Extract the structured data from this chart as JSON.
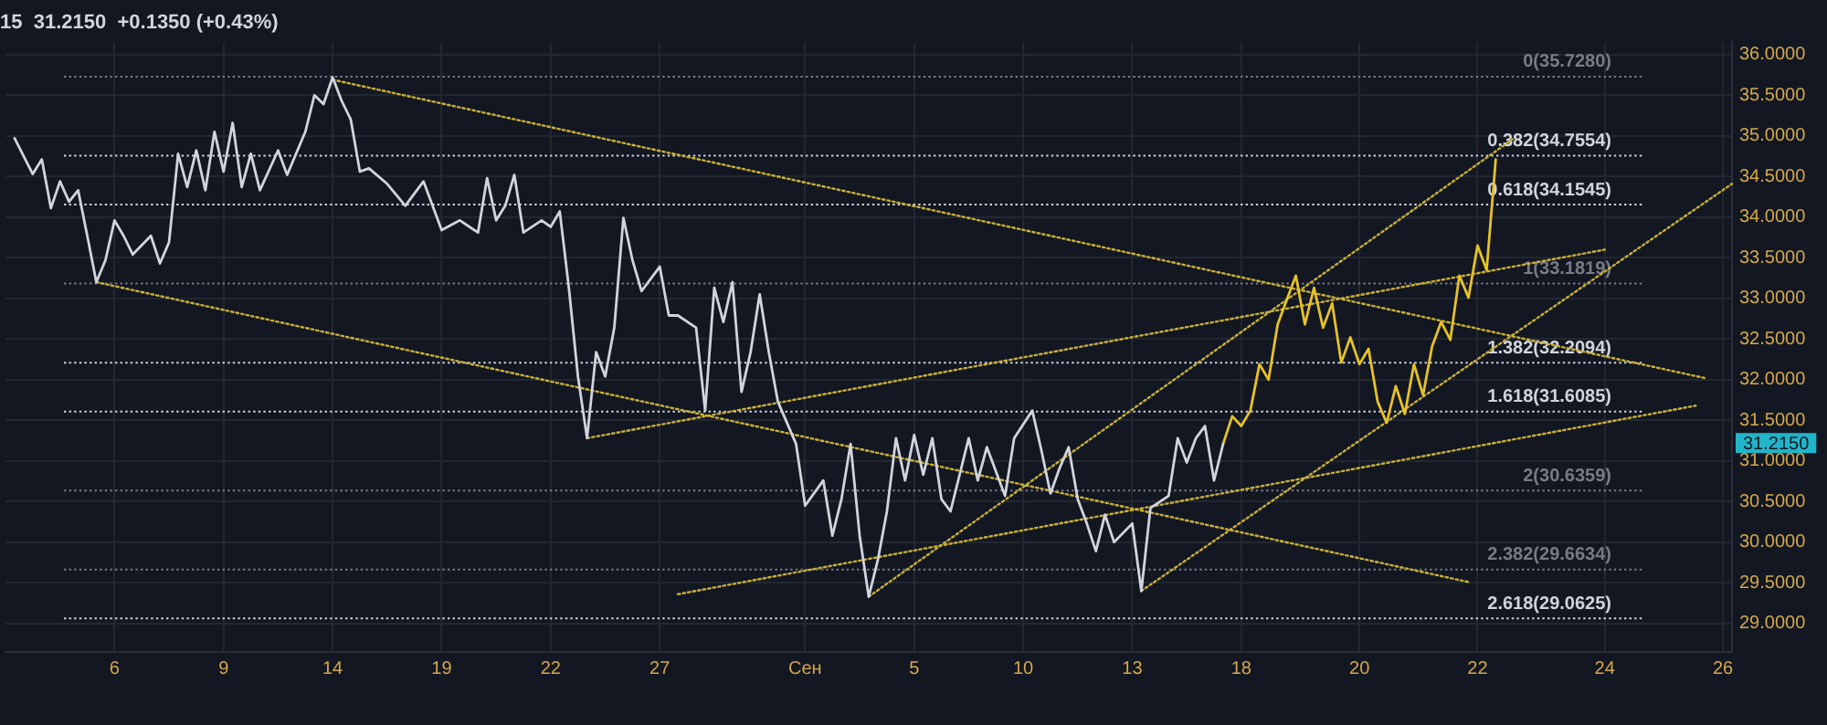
{
  "chart_data": {
    "type": "line",
    "title": "15  31.2150  +0.1350 (+0.43%)",
    "categories": [
      null,
      null,
      null,
      null,
      null,
      null,
      null,
      null,
      null,
      null,
      null,
      null,
      "6",
      null,
      null,
      null,
      null,
      null,
      null,
      null,
      null,
      null,
      null,
      null,
      "9",
      null,
      null,
      null,
      null,
      null,
      null,
      null,
      null,
      null,
      null,
      null,
      "14",
      null,
      null,
      null,
      null,
      null,
      null,
      null,
      null,
      null,
      null,
      null,
      "19",
      null,
      null,
      null,
      null,
      null,
      null,
      null,
      null,
      null,
      null,
      null,
      "22",
      null,
      null,
      null,
      null,
      null,
      null,
      null,
      null,
      null,
      null,
      null,
      "27",
      null,
      null,
      null,
      null,
      null,
      null,
      null,
      null,
      null,
      null,
      null,
      null,
      null,
      null,
      null,
      "Сен",
      null,
      null,
      null,
      null,
      null,
      null,
      null,
      null,
      null,
      null,
      null,
      "5",
      null,
      null,
      null,
      null,
      null,
      null,
      null,
      null,
      null,
      null,
      null,
      "10",
      null,
      null,
      null,
      null,
      null,
      null,
      null,
      null,
      null,
      null,
      null,
      "13",
      null,
      null,
      null,
      null,
      null,
      null,
      null,
      null,
      null,
      null,
      null,
      "18",
      null,
      null,
      null,
      null,
      null,
      null,
      null,
      null,
      null,
      null,
      null,
      null,
      "20",
      null,
      null,
      null,
      null,
      null,
      null,
      null,
      null,
      null,
      null,
      null,
      null,
      "22",
      null,
      null,
      null,
      null,
      null,
      null,
      null,
      null,
      null,
      null,
      null,
      null,
      null,
      "24",
      null,
      null,
      null,
      null,
      null,
      null,
      null,
      null,
      null,
      null,
      null,
      null,
      "26",
      null
    ],
    "ylim": [
      28.65,
      36.15
    ],
    "yticks": [
      {
        "value": 29,
        "label": "29.0000"
      },
      {
        "value": 29.5,
        "label": "29.5000"
      },
      {
        "value": 30,
        "label": "30.0000"
      },
      {
        "value": 30.5,
        "label": "30.5000"
      },
      {
        "value": 31,
        "label": "31.0000"
      },
      {
        "value": 31.5,
        "label": "31.5000"
      },
      {
        "value": 32,
        "label": "32.0000"
      },
      {
        "value": 32.5,
        "label": "32.5000"
      },
      {
        "value": 33,
        "label": "33.0000"
      },
      {
        "value": 33.5,
        "label": "33.5000"
      },
      {
        "value": 34,
        "label": "34.0000"
      },
      {
        "value": 34.5,
        "label": "34.5000"
      },
      {
        "value": 35,
        "label": "35.0000"
      },
      {
        "value": 35.5,
        "label": "35.5000"
      },
      {
        "value": 36,
        "label": "36.0000"
      }
    ],
    "grid": true,
    "marker": "none",
    "series": [
      {
        "color": "#d1d4dc",
        "line_style": "solid",
        "values": [
          null,
          34.97,
          null,
          34.53,
          34.71,
          34.11,
          34.44,
          34.19,
          34.33,
          33.77,
          33.2,
          33.47,
          33.96,
          33.77,
          33.54,
          null,
          33.77,
          33.43,
          33.69,
          34.78,
          34.37,
          34.82,
          34.33,
          35.05,
          34.56,
          35.16,
          34.37,
          34.78,
          34.33,
          null,
          34.82,
          34.52,
          null,
          35.05,
          35.5,
          35.39,
          35.72,
          35.43,
          35.2,
          34.56,
          34.6,
          null,
          34.41,
          null,
          34.14,
          null,
          34.44,
          null,
          33.84,
          null,
          33.96,
          null,
          33.81,
          34.48,
          33.96,
          34.14,
          34.52,
          33.81,
          null,
          33.96,
          33.88,
          34.07,
          33.13,
          32.04,
          31.28,
          32.34,
          32.04,
          32.64,
          33.99,
          33.47,
          33.09,
          null,
          33.39,
          32.79,
          32.79,
          null,
          32.64,
          31.62,
          33.13,
          32.71,
          33.2,
          31.85,
          32.34,
          33.05,
          32.34,
          31.73,
          null,
          31.21,
          30.45,
          null,
          30.76,
          30.08,
          30.53,
          31.21,
          30.08,
          29.33,
          29.78,
          30.38,
          31.28,
          30.76,
          31.32,
          30.83,
          31.28,
          30.53,
          30.38,
          null,
          31.28,
          30.76,
          31.17,
          null,
          30.57,
          31.28,
          null,
          31.62,
          31.13,
          30.6,
          30.91,
          31.17,
          30.53,
          30.23,
          29.89,
          30.34,
          30.0,
          null,
          30.23,
          29.4,
          30.42,
          null,
          30.57,
          31.28,
          30.98,
          31.28,
          31.43,
          30.76,
          31.21,
          null,
          null,
          null,
          null,
          null,
          null,
          null,
          null,
          null,
          null,
          null,
          null,
          null,
          null,
          null,
          null,
          null,
          null,
          null,
          null,
          null,
          null,
          null,
          null,
          null,
          null,
          null,
          null,
          null,
          null,
          null,
          null,
          null,
          null,
          null,
          null,
          null,
          null,
          null,
          null,
          null,
          null,
          null,
          null,
          null,
          null,
          null,
          null,
          null,
          null,
          null,
          null,
          null,
          null,
          null,
          null
        ]
      },
      {
        "color": "#e6c229",
        "line_style": "solid",
        "values": [
          null,
          null,
          null,
          null,
          null,
          null,
          null,
          null,
          null,
          null,
          null,
          null,
          null,
          null,
          null,
          null,
          null,
          null,
          null,
          null,
          null,
          null,
          null,
          null,
          null,
          null,
          null,
          null,
          null,
          null,
          null,
          null,
          null,
          null,
          null,
          null,
          null,
          null,
          null,
          null,
          null,
          null,
          null,
          null,
          null,
          null,
          null,
          null,
          null,
          null,
          null,
          null,
          null,
          null,
          null,
          null,
          null,
          null,
          null,
          null,
          null,
          null,
          null,
          null,
          null,
          null,
          null,
          null,
          null,
          null,
          null,
          null,
          null,
          null,
          null,
          null,
          null,
          null,
          null,
          null,
          null,
          null,
          null,
          null,
          null,
          null,
          null,
          null,
          null,
          null,
          null,
          null,
          null,
          null,
          null,
          null,
          null,
          null,
          null,
          null,
          null,
          null,
          null,
          null,
          null,
          null,
          null,
          null,
          null,
          null,
          null,
          null,
          null,
          null,
          null,
          null,
          null,
          null,
          null,
          null,
          null,
          null,
          null,
          null,
          null,
          null,
          null,
          null,
          null,
          null,
          null,
          null,
          null,
          null,
          31.21,
          31.55,
          31.43,
          31.62,
          32.19,
          32.0,
          32.68,
          32.98,
          33.28,
          32.68,
          33.13,
          32.64,
          32.94,
          32.21,
          32.52,
          32.19,
          32.38,
          31.73,
          31.47,
          31.92,
          31.58,
          32.19,
          31.81,
          32.41,
          32.71,
          32.49,
          33.28,
          33.01,
          33.65,
          33.35,
          34.71,
          null,
          null,
          null,
          null,
          null,
          null,
          null,
          null,
          null,
          null,
          null,
          null,
          null,
          null,
          null,
          null,
          null,
          null,
          null,
          null,
          null,
          null,
          null,
          null,
          null,
          null
        ]
      },
      {
        "color": "#c9b037",
        "line_style": "dotted",
        "values": [
          null,
          null,
          null,
          null,
          null,
          null,
          null,
          null,
          null,
          null,
          null,
          null,
          null,
          null,
          null,
          null,
          null,
          null,
          null,
          null,
          null,
          null,
          null,
          null,
          null,
          null,
          null,
          null,
          null,
          null,
          null,
          null,
          null,
          null,
          null,
          null,
          35.69,
          null,
          null,
          null,
          null,
          null,
          null,
          null,
          null,
          null,
          null,
          null,
          null,
          null,
          null,
          null,
          null,
          null,
          null,
          null,
          null,
          null,
          null,
          null,
          null,
          null,
          null,
          null,
          null,
          null,
          null,
          null,
          null,
          null,
          null,
          null,
          null,
          null,
          null,
          null,
          null,
          null,
          null,
          null,
          null,
          null,
          null,
          null,
          null,
          null,
          null,
          null,
          null,
          null,
          null,
          null,
          null,
          null,
          null,
          null,
          null,
          null,
          null,
          null,
          null,
          null,
          null,
          null,
          null,
          null,
          null,
          null,
          null,
          null,
          null,
          null,
          null,
          null,
          null,
          null,
          null,
          null,
          null,
          null,
          null,
          null,
          null,
          null,
          null,
          null,
          null,
          null,
          null,
          null,
          null,
          null,
          null,
          null,
          null,
          null,
          null,
          null,
          null,
          null,
          null,
          null,
          null,
          null,
          null,
          null,
          null,
          null,
          null,
          null,
          null,
          null,
          null,
          null,
          null,
          null,
          null,
          null,
          null,
          null,
          null,
          null,
          null,
          null,
          null,
          null,
          null,
          null,
          null,
          null,
          null,
          null,
          null,
          null,
          null,
          null,
          null,
          null,
          null,
          null,
          null,
          null,
          null,
          null,
          null,
          null,
          null,
          32.02,
          null,
          null,
          null
        ]
      },
      {
        "color": "#c9b037",
        "line_style": "dotted",
        "values": [
          null,
          null,
          null,
          null,
          null,
          null,
          null,
          null,
          null,
          null,
          33.2,
          null,
          null,
          null,
          null,
          null,
          null,
          null,
          null,
          null,
          null,
          null,
          null,
          null,
          null,
          null,
          null,
          null,
          null,
          null,
          null,
          null,
          null,
          null,
          null,
          null,
          null,
          null,
          null,
          null,
          null,
          null,
          null,
          null,
          null,
          null,
          null,
          null,
          null,
          null,
          null,
          null,
          null,
          null,
          null,
          null,
          null,
          null,
          null,
          null,
          null,
          null,
          null,
          null,
          null,
          null,
          null,
          null,
          null,
          null,
          null,
          null,
          null,
          null,
          null,
          null,
          null,
          null,
          null,
          null,
          null,
          null,
          null,
          null,
          null,
          null,
          null,
          null,
          null,
          null,
          null,
          null,
          null,
          null,
          null,
          null,
          null,
          null,
          null,
          null,
          null,
          null,
          null,
          null,
          null,
          null,
          null,
          null,
          null,
          null,
          null,
          null,
          null,
          null,
          null,
          null,
          null,
          null,
          null,
          null,
          null,
          null,
          null,
          null,
          null,
          null,
          null,
          null,
          null,
          null,
          null,
          null,
          null,
          null,
          null,
          null,
          null,
          null,
          null,
          null,
          null,
          null,
          null,
          null,
          null,
          null,
          null,
          null,
          null,
          null,
          null,
          null,
          null,
          null,
          null,
          null,
          null,
          null,
          null,
          null,
          null,
          29.51,
          null,
          null,
          null,
          null,
          null,
          null,
          null,
          null,
          null,
          null,
          null,
          null,
          null,
          null,
          null,
          null,
          null,
          null,
          null,
          null,
          null,
          null,
          null,
          null,
          null,
          null,
          null,
          null,
          null
        ]
      },
      {
        "color": "#c9b037",
        "line_style": "dotted",
        "values": [
          null,
          null,
          null,
          null,
          null,
          null,
          null,
          null,
          null,
          null,
          null,
          null,
          null,
          null,
          null,
          null,
          null,
          null,
          null,
          null,
          null,
          null,
          null,
          null,
          null,
          null,
          null,
          null,
          null,
          null,
          null,
          null,
          null,
          null,
          null,
          null,
          null,
          null,
          null,
          null,
          null,
          null,
          null,
          null,
          null,
          null,
          null,
          null,
          null,
          null,
          null,
          null,
          null,
          null,
          null,
          null,
          null,
          null,
          null,
          null,
          null,
          null,
          null,
          null,
          31.28,
          null,
          null,
          null,
          null,
          null,
          null,
          null,
          null,
          null,
          null,
          null,
          null,
          null,
          null,
          null,
          null,
          null,
          null,
          null,
          null,
          null,
          null,
          null,
          null,
          null,
          null,
          null,
          null,
          null,
          null,
          null,
          null,
          null,
          null,
          null,
          null,
          null,
          null,
          null,
          null,
          null,
          null,
          null,
          null,
          null,
          null,
          null,
          null,
          null,
          null,
          null,
          null,
          null,
          null,
          null,
          null,
          null,
          null,
          null,
          null,
          null,
          null,
          null,
          null,
          null,
          null,
          null,
          null,
          null,
          null,
          null,
          null,
          null,
          null,
          null,
          null,
          null,
          null,
          null,
          null,
          null,
          null,
          null,
          null,
          null,
          null,
          null,
          null,
          null,
          null,
          null,
          null,
          null,
          null,
          null,
          null,
          null,
          null,
          null,
          null,
          null,
          null,
          null,
          null,
          null,
          null,
          null,
          null,
          null,
          null,
          null,
          33.6,
          null,
          null,
          null,
          null,
          null,
          null,
          null,
          null,
          null,
          null,
          null,
          null,
          null,
          null
        ]
      },
      {
        "color": "#c9b037",
        "line_style": "dotted",
        "values": [
          null,
          null,
          null,
          null,
          null,
          null,
          null,
          null,
          null,
          null,
          null,
          null,
          null,
          null,
          null,
          null,
          null,
          null,
          null,
          null,
          null,
          null,
          null,
          null,
          null,
          null,
          null,
          null,
          null,
          null,
          null,
          null,
          null,
          null,
          null,
          null,
          null,
          null,
          null,
          null,
          null,
          null,
          null,
          null,
          null,
          null,
          null,
          null,
          null,
          null,
          null,
          null,
          null,
          null,
          null,
          null,
          null,
          null,
          null,
          null,
          null,
          null,
          null,
          null,
          null,
          null,
          null,
          null,
          null,
          null,
          null,
          null,
          null,
          null,
          29.36,
          null,
          null,
          null,
          null,
          null,
          null,
          null,
          null,
          null,
          null,
          null,
          null,
          null,
          null,
          null,
          null,
          null,
          null,
          null,
          null,
          null,
          null,
          null,
          null,
          null,
          null,
          null,
          null,
          null,
          null,
          null,
          null,
          null,
          null,
          null,
          null,
          null,
          null,
          null,
          null,
          null,
          null,
          null,
          null,
          null,
          null,
          null,
          null,
          null,
          null,
          null,
          null,
          null,
          null,
          null,
          null,
          null,
          null,
          null,
          null,
          null,
          null,
          null,
          null,
          null,
          null,
          null,
          null,
          null,
          null,
          null,
          null,
          null,
          null,
          null,
          null,
          null,
          null,
          null,
          null,
          null,
          null,
          null,
          null,
          null,
          null,
          null,
          null,
          null,
          null,
          null,
          null,
          null,
          null,
          null,
          null,
          null,
          null,
          null,
          null,
          null,
          null,
          null,
          null,
          null,
          null,
          null,
          null,
          null,
          null,
          null,
          31.68,
          null,
          null,
          null,
          null
        ]
      },
      {
        "color": "#c9b037",
        "line_style": "dotted",
        "values": [
          null,
          null,
          null,
          null,
          null,
          null,
          null,
          null,
          null,
          null,
          null,
          null,
          null,
          null,
          null,
          null,
          null,
          null,
          null,
          null,
          null,
          null,
          null,
          null,
          null,
          null,
          null,
          null,
          null,
          null,
          null,
          null,
          null,
          null,
          null,
          null,
          null,
          null,
          null,
          null,
          null,
          null,
          null,
          null,
          null,
          null,
          null,
          null,
          null,
          null,
          null,
          null,
          null,
          null,
          null,
          null,
          null,
          null,
          null,
          null,
          null,
          null,
          null,
          null,
          null,
          null,
          null,
          null,
          null,
          null,
          null,
          null,
          null,
          null,
          null,
          null,
          null,
          null,
          null,
          null,
          null,
          null,
          null,
          null,
          null,
          null,
          null,
          null,
          null,
          null,
          null,
          null,
          null,
          null,
          null,
          29.33,
          null,
          null,
          null,
          null,
          null,
          null,
          null,
          null,
          null,
          null,
          null,
          null,
          null,
          null,
          null,
          null,
          null,
          null,
          null,
          null,
          null,
          null,
          null,
          null,
          null,
          null,
          null,
          null,
          null,
          null,
          null,
          null,
          null,
          null,
          null,
          null,
          null,
          null,
          null,
          null,
          null,
          null,
          null,
          null,
          null,
          null,
          null,
          null,
          null,
          null,
          null,
          null,
          null,
          null,
          null,
          null,
          null,
          null,
          null,
          null,
          null,
          null,
          null,
          null,
          null,
          null,
          null,
          null,
          null,
          null,
          34.97,
          null,
          null,
          null,
          null,
          null,
          null,
          null,
          null,
          null,
          null,
          null,
          null,
          null,
          null,
          null,
          null,
          null,
          null,
          null,
          null,
          null,
          null,
          null,
          null
        ]
      },
      {
        "color": "#c9b037",
        "line_style": "dotted",
        "values": [
          null,
          null,
          null,
          null,
          null,
          null,
          null,
          null,
          null,
          null,
          null,
          null,
          null,
          null,
          null,
          null,
          null,
          null,
          null,
          null,
          null,
          null,
          null,
          null,
          null,
          null,
          null,
          null,
          null,
          null,
          null,
          null,
          null,
          null,
          null,
          null,
          null,
          null,
          null,
          null,
          null,
          null,
          null,
          null,
          null,
          null,
          null,
          null,
          null,
          null,
          null,
          null,
          null,
          null,
          null,
          null,
          null,
          null,
          null,
          null,
          null,
          null,
          null,
          null,
          null,
          null,
          null,
          null,
          null,
          null,
          null,
          null,
          null,
          null,
          null,
          null,
          null,
          null,
          null,
          null,
          null,
          null,
          null,
          null,
          null,
          null,
          null,
          null,
          null,
          null,
          null,
          null,
          null,
          null,
          null,
          null,
          null,
          null,
          null,
          null,
          null,
          null,
          null,
          null,
          null,
          null,
          null,
          null,
          null,
          null,
          null,
          null,
          null,
          null,
          null,
          null,
          null,
          null,
          null,
          null,
          null,
          null,
          null,
          null,
          null,
          29.4,
          null,
          null,
          null,
          null,
          null,
          null,
          null,
          null,
          null,
          null,
          null,
          null,
          null,
          null,
          null,
          null,
          null,
          null,
          null,
          null,
          null,
          null,
          null,
          null,
          null,
          null,
          null,
          null,
          null,
          null,
          null,
          null,
          null,
          null,
          null,
          null,
          null,
          null,
          null,
          null,
          null,
          null,
          null,
          null,
          null,
          null,
          null,
          null,
          null,
          null,
          null,
          null,
          null,
          null,
          null,
          null,
          null,
          null,
          null,
          null,
          null,
          null,
          null,
          null,
          34.41
        ]
      }
    ],
    "ref_lines": [
      {
        "axis": "y",
        "value": 35.728,
        "label": "0(35.7280)",
        "color": "#787b86",
        "line_style": "dotted"
      },
      {
        "axis": "y",
        "value": 34.7554,
        "label": "0.382(34.7554)",
        "color": "#d1d4dc",
        "line_style": "dotted"
      },
      {
        "axis": "y",
        "value": 34.1545,
        "label": "0.618(34.1545)",
        "color": "#d1d4dc",
        "line_style": "dotted"
      },
      {
        "axis": "y",
        "value": 33.1819,
        "label": "1(33.1819)",
        "color": "#787b86",
        "line_style": "dotted"
      },
      {
        "axis": "y",
        "value": 32.2094,
        "label": "1.382(32.2094)",
        "color": "#d1d4dc",
        "line_style": "dotted"
      },
      {
        "axis": "y",
        "value": 31.6085,
        "label": "1.618(31.6085)",
        "color": "#d1d4dc",
        "line_style": "dotted"
      },
      {
        "axis": "y",
        "value": 30.6359,
        "label": "2(30.6359)",
        "color": "#787b86",
        "line_style": "dotted"
      },
      {
        "axis": "y",
        "value": 29.6634,
        "label": "2.382(29.6634)",
        "color": "#787b86",
        "line_style": "dotted"
      },
      {
        "axis": "y",
        "value": 29.0625,
        "label": "2.618(29.0625)",
        "color": "#d1d4dc",
        "line_style": "dotted"
      }
    ],
    "annotations": [
      "31.2150"
    ]
  }
}
